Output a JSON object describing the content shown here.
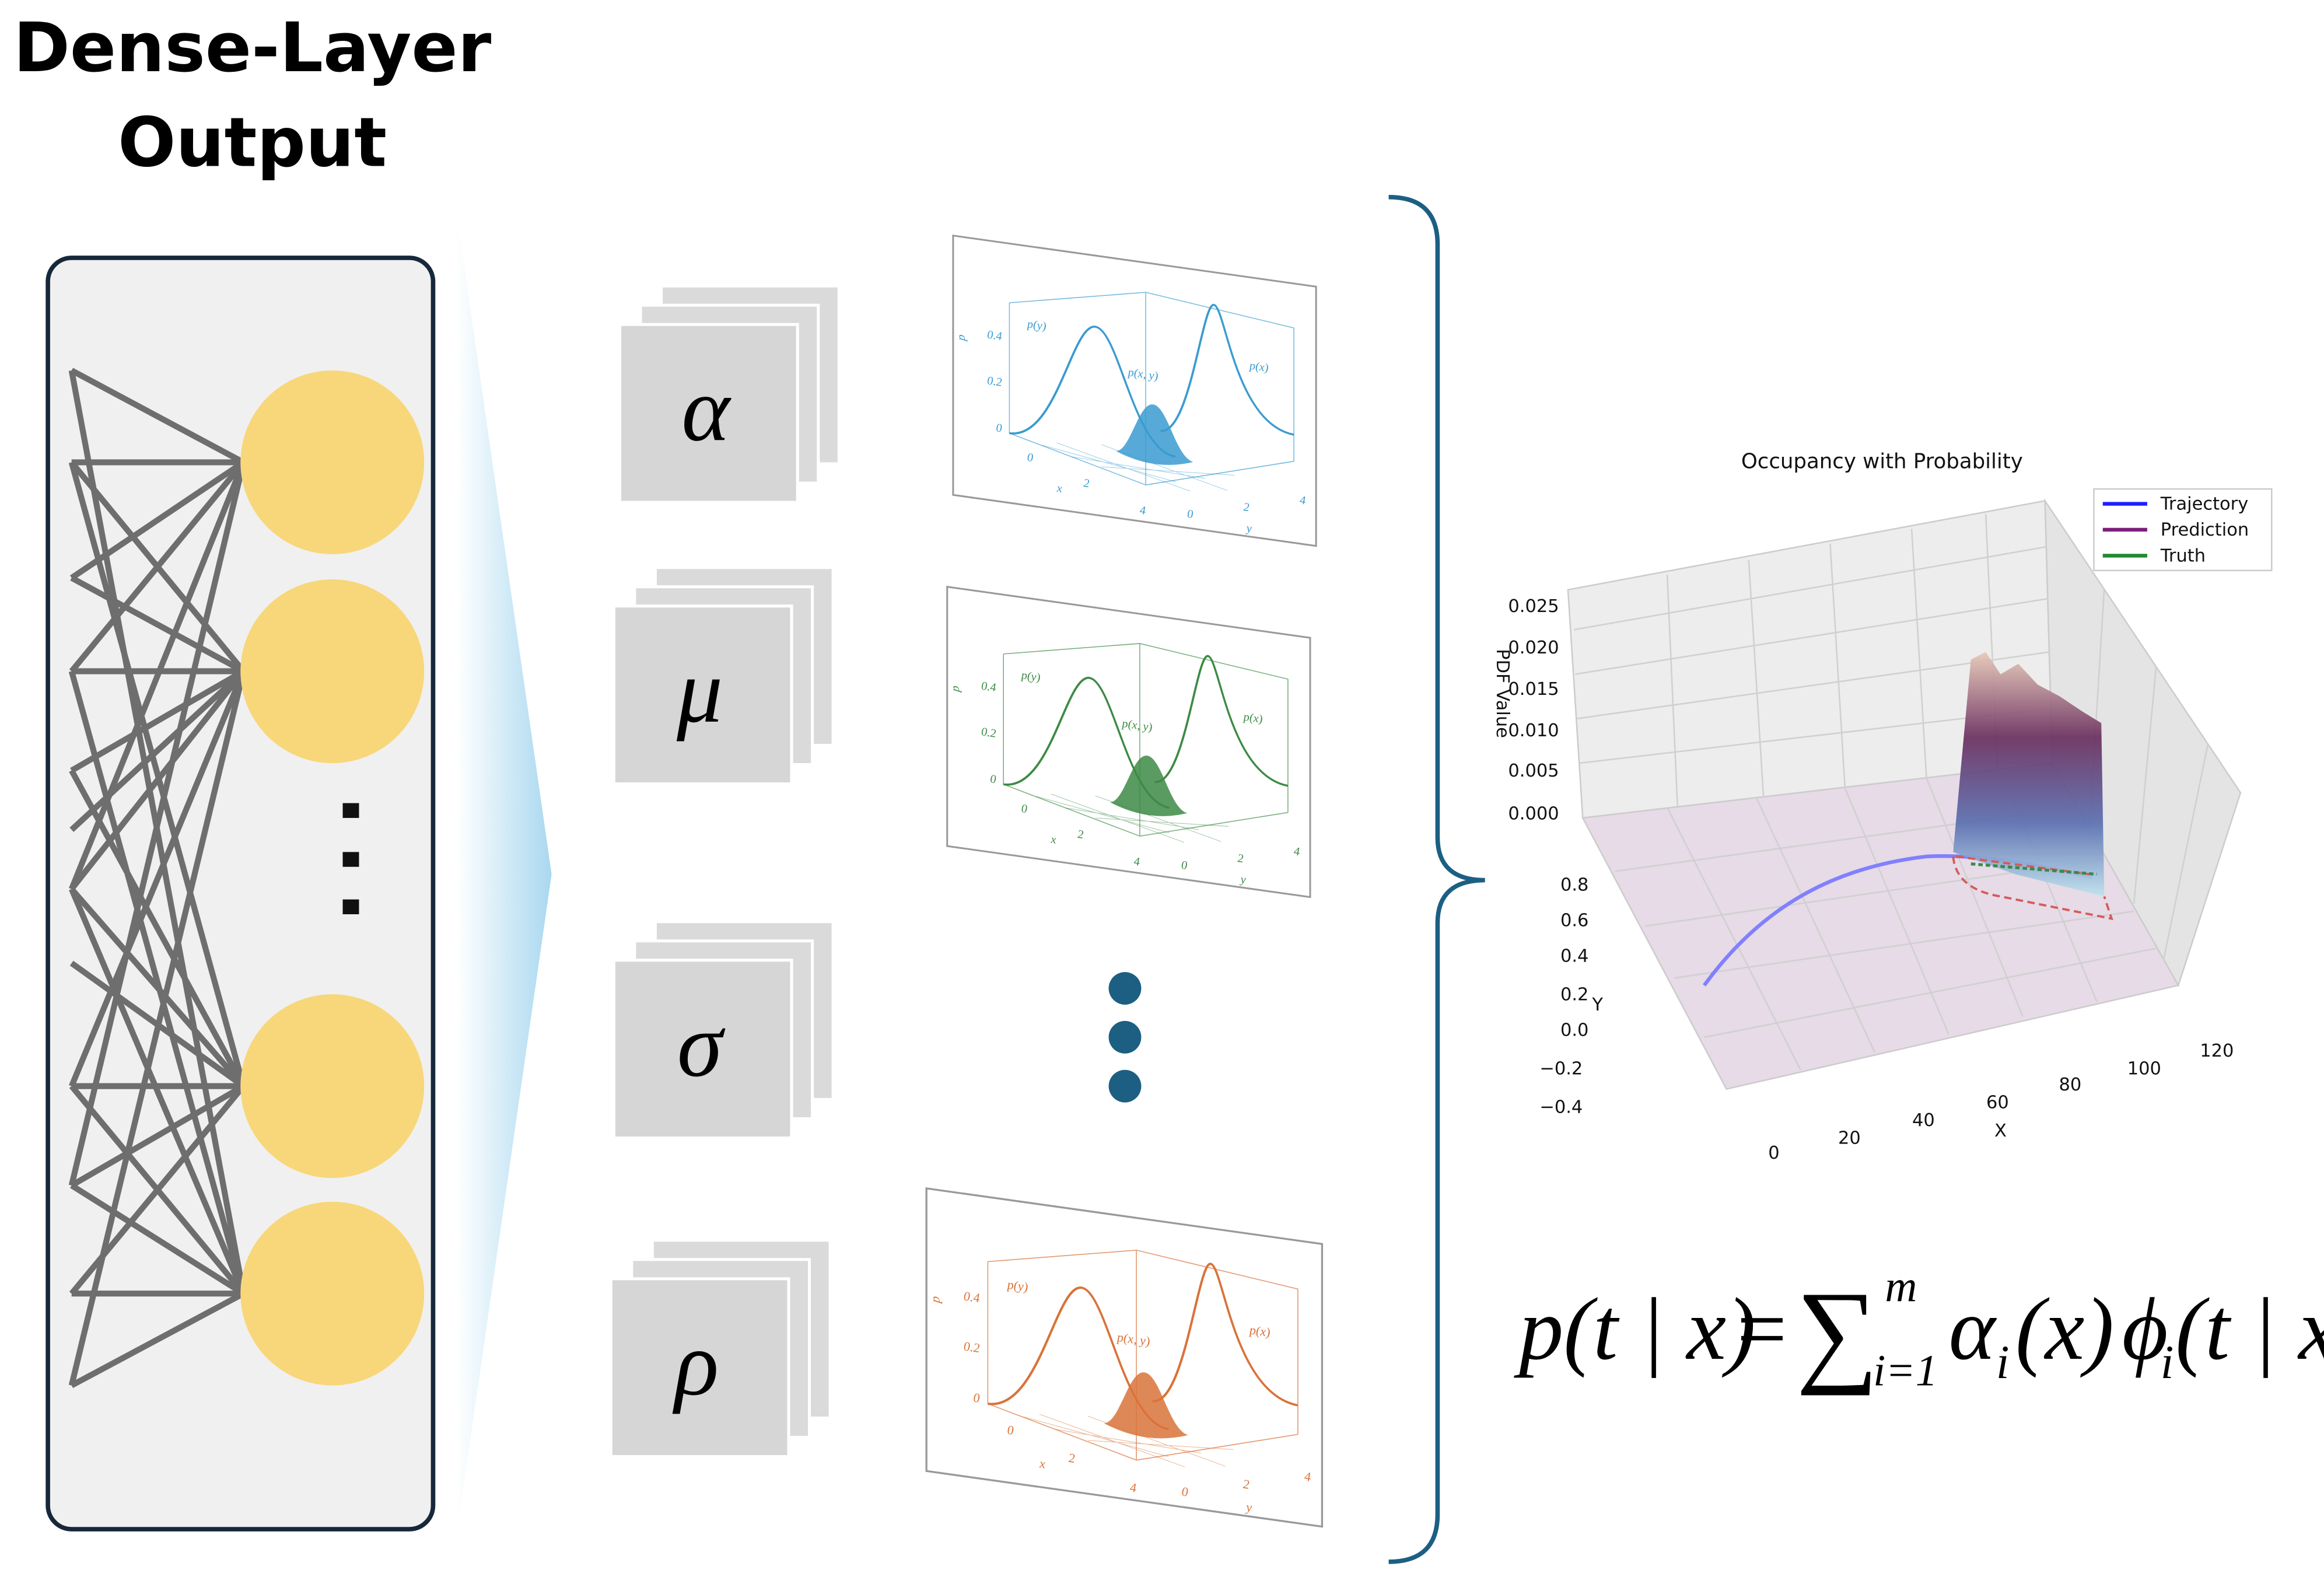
{
  "header": {
    "title_line1": "Dense-Layer",
    "title_line2": "Output"
  },
  "parameters": [
    "α",
    "μ",
    "σ",
    "ρ"
  ],
  "mini_plot_labels": {
    "p_y": "p(y)",
    "p_xy": "p(x, y)",
    "p_x": "p(x)",
    "p_axis": "p",
    "p_ticks": [
      "0.4",
      "0.2",
      "0"
    ],
    "x_ticks": [
      "0",
      "2",
      "4"
    ],
    "y_ticks": [
      "0",
      "2",
      "4"
    ],
    "x_label": "x",
    "y_label": "y"
  },
  "mini_plots": [
    {
      "color": "#3a9bd0"
    },
    {
      "color": "#3d8a45"
    },
    {
      "color": "#d9733a"
    }
  ],
  "occupancy_plot": {
    "title": "Occupancy with Probability",
    "legend": [
      {
        "name": "Trajectory",
        "color": "#1f1fff"
      },
      {
        "name": "Prediction",
        "color": "#7b1f7b"
      },
      {
        "name": "Truth",
        "color": "#1f8a2f"
      }
    ],
    "z_label": "PDF Value",
    "z_ticks": [
      "0.025",
      "0.020",
      "0.015",
      "0.010",
      "0.005",
      "0.000"
    ],
    "y_label": "Y",
    "y_ticks": [
      "0.8",
      "0.6",
      "0.4",
      "0.2",
      "0.0",
      "−0.2",
      "−0.4"
    ],
    "x_label": "X",
    "x_ticks": [
      "0",
      "20",
      "40",
      "60",
      "80",
      "100",
      "120"
    ]
  },
  "formula": {
    "lhs": "p(t | x)",
    "equals": "=",
    "sum": "∑",
    "upper": "m",
    "lower": "i=1",
    "alpha": "α",
    "sub1": "i",
    "arg1": "(x)",
    "phi": "ϕ",
    "sub2": "i",
    "arg2": "(t | x)"
  }
}
